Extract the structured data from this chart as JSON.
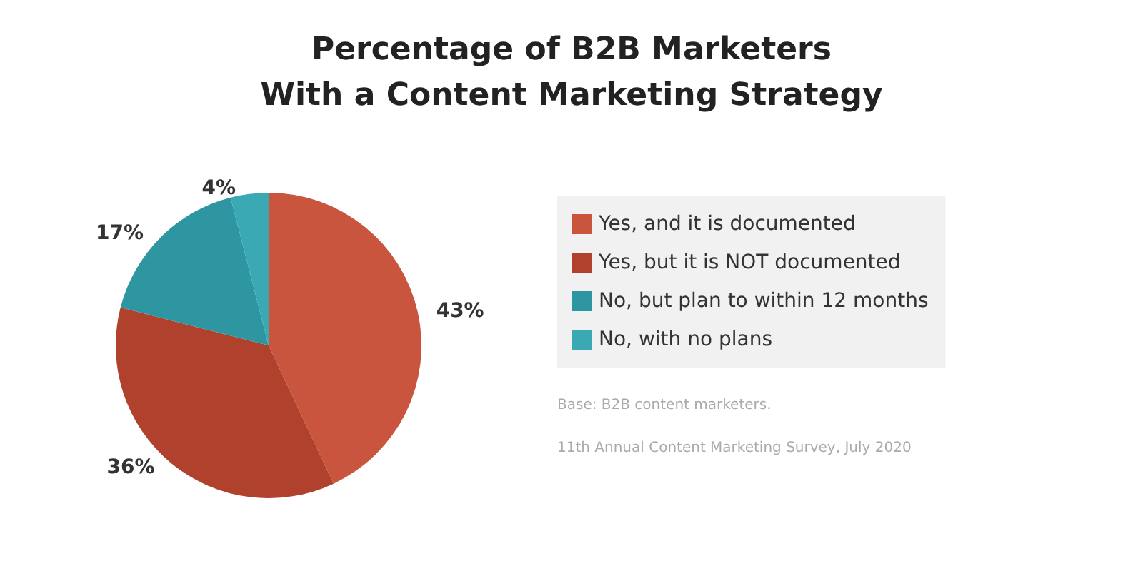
{
  "chart_data": {
    "type": "pie",
    "title": "Percentage of B2B Marketers\nWith a Content Marketing Strategy",
    "categories": [
      "Yes, and it is documented",
      "Yes, but it is NOT documented",
      "No, but plan to within 12 months",
      "No, with no plans"
    ],
    "values": [
      43,
      36,
      17,
      4
    ],
    "colors": [
      "#c9553e",
      "#b0422d",
      "#2e96a0",
      "#3aa9b4"
    ],
    "value_labels": [
      "43%",
      "36%",
      "17%",
      "4%"
    ],
    "legend": "right",
    "annotations": [
      "Base: B2B content marketers.",
      "11th Annual Content Marketing Survey, July 2020"
    ]
  }
}
